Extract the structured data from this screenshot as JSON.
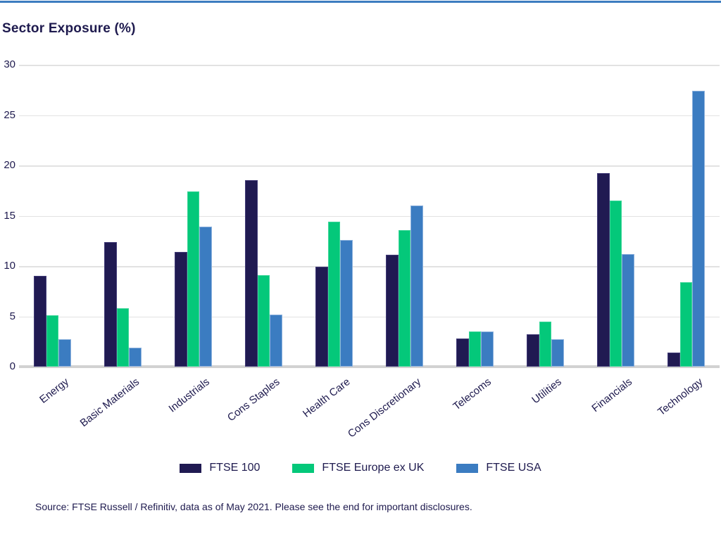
{
  "page": {
    "title": "Sector Exposure (%)",
    "source": "Source: FTSE Russell / Refinitiv, data as of May 2021. Please see the end for important disclosures.",
    "accent_line_color": "#3c7cc0",
    "text_color": "#1e1a4e"
  },
  "chart_data": {
    "type": "bar",
    "title": "Sector Exposure (%)",
    "xlabel": "",
    "ylabel": "",
    "ylim": [
      0,
      30
    ],
    "yticks": [
      0,
      5,
      10,
      15,
      20,
      25,
      30
    ],
    "grid": "horizontal",
    "legend_position": "bottom",
    "categories": [
      "Energy",
      "Basic Materials",
      "Industrials",
      "Cons Staples",
      "Health Care",
      "Cons Discretionary",
      "Telecoms",
      "Utilities",
      "Financials",
      "Technology"
    ],
    "series": [
      {
        "name": "FTSE 100",
        "color": "#201a52",
        "border_color": "#423c78",
        "values": [
          9.0,
          12.4,
          11.4,
          18.5,
          9.9,
          11.1,
          2.8,
          3.2,
          19.2,
          1.4
        ]
      },
      {
        "name": "FTSE Europe ex UK",
        "color": "#04c87a",
        "border_color": "#3bd698",
        "values": [
          5.1,
          5.8,
          17.4,
          9.1,
          14.4,
          13.6,
          3.5,
          4.5,
          16.5,
          8.4
        ]
      },
      {
        "name": "FTSE USA",
        "color": "#3b7cc1",
        "border_color": "#8cb1dd",
        "values": [
          2.7,
          1.9,
          13.9,
          5.2,
          12.6,
          16.0,
          3.5,
          2.7,
          11.2,
          27.4
        ]
      }
    ]
  }
}
